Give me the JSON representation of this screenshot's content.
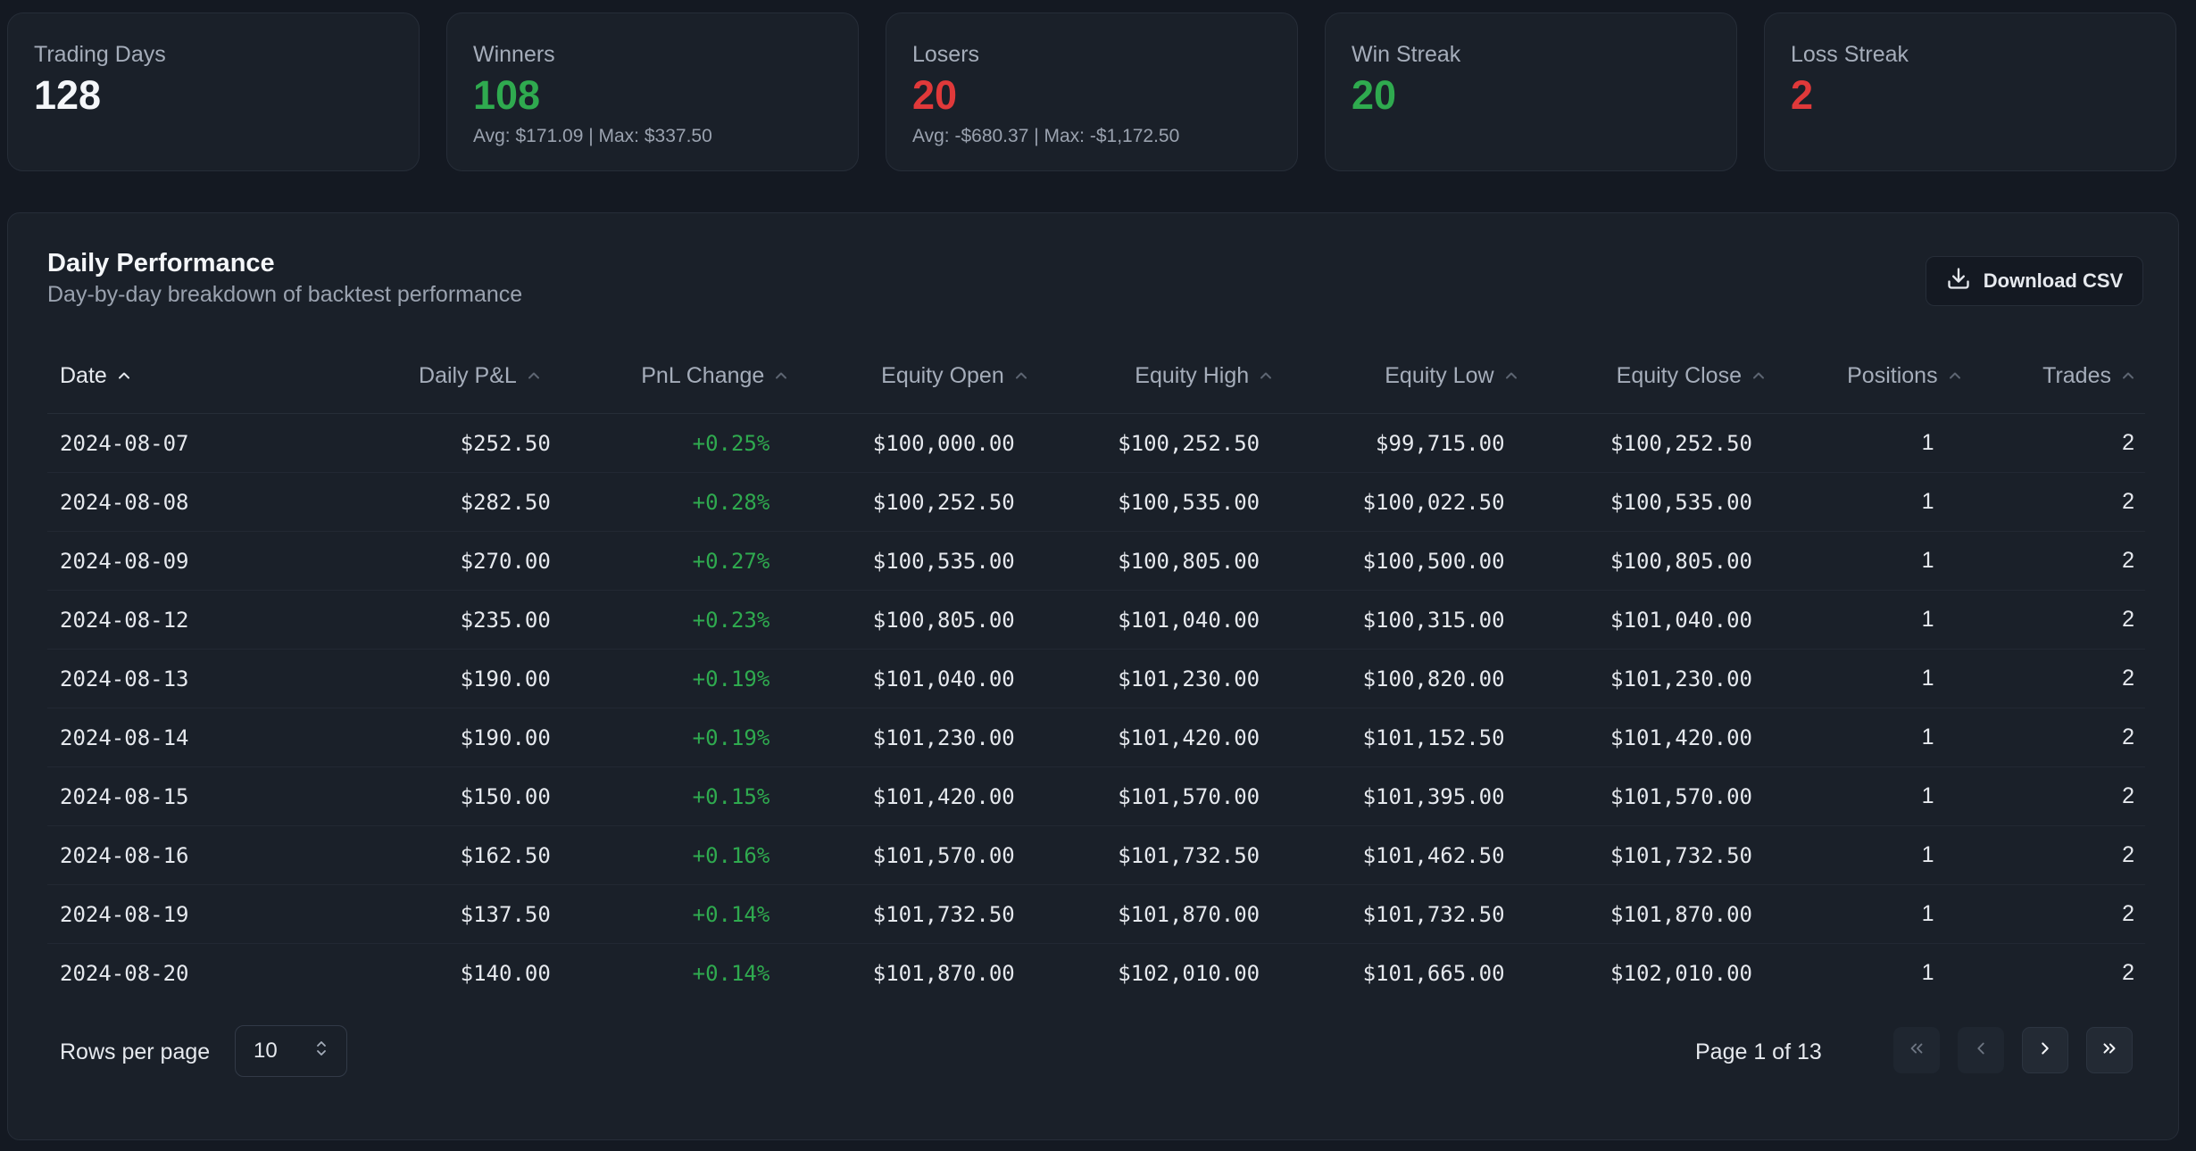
{
  "stats": {
    "trading_days": {
      "label": "Trading Days",
      "value": "128"
    },
    "winners": {
      "label": "Winners",
      "value": "108",
      "sub": "Avg: $171.09 | Max: $337.50"
    },
    "losers": {
      "label": "Losers",
      "value": "20",
      "sub": "Avg: -$680.37 | Max: -$1,172.50"
    },
    "win_streak": {
      "label": "Win Streak",
      "value": "20"
    },
    "loss_streak": {
      "label": "Loss Streak",
      "value": "2"
    }
  },
  "panel": {
    "title": "Daily Performance",
    "subtitle": "Day-by-day breakdown of backtest performance",
    "download_label": "Download CSV"
  },
  "table": {
    "headers": {
      "date": "Date",
      "daily_pnl": "Daily P&L",
      "pnl_change": "PnL Change",
      "equity_open": "Equity Open",
      "equity_high": "Equity High",
      "equity_low": "Equity Low",
      "equity_close": "Equity Close",
      "positions": "Positions",
      "trades": "Trades"
    },
    "rows": [
      {
        "date": "2024-08-07",
        "daily_pnl": "$252.50",
        "pnl_change": "+0.25%",
        "equity_open": "$100,000.00",
        "equity_high": "$100,252.50",
        "equity_low": "$99,715.00",
        "equity_close": "$100,252.50",
        "positions": "1",
        "trades": "2"
      },
      {
        "date": "2024-08-08",
        "daily_pnl": "$282.50",
        "pnl_change": "+0.28%",
        "equity_open": "$100,252.50",
        "equity_high": "$100,535.00",
        "equity_low": "$100,022.50",
        "equity_close": "$100,535.00",
        "positions": "1",
        "trades": "2"
      },
      {
        "date": "2024-08-09",
        "daily_pnl": "$270.00",
        "pnl_change": "+0.27%",
        "equity_open": "$100,535.00",
        "equity_high": "$100,805.00",
        "equity_low": "$100,500.00",
        "equity_close": "$100,805.00",
        "positions": "1",
        "trades": "2"
      },
      {
        "date": "2024-08-12",
        "daily_pnl": "$235.00",
        "pnl_change": "+0.23%",
        "equity_open": "$100,805.00",
        "equity_high": "$101,040.00",
        "equity_low": "$100,315.00",
        "equity_close": "$101,040.00",
        "positions": "1",
        "trades": "2"
      },
      {
        "date": "2024-08-13",
        "daily_pnl": "$190.00",
        "pnl_change": "+0.19%",
        "equity_open": "$101,040.00",
        "equity_high": "$101,230.00",
        "equity_low": "$100,820.00",
        "equity_close": "$101,230.00",
        "positions": "1",
        "trades": "2"
      },
      {
        "date": "2024-08-14",
        "daily_pnl": "$190.00",
        "pnl_change": "+0.19%",
        "equity_open": "$101,230.00",
        "equity_high": "$101,420.00",
        "equity_low": "$101,152.50",
        "equity_close": "$101,420.00",
        "positions": "1",
        "trades": "2"
      },
      {
        "date": "2024-08-15",
        "daily_pnl": "$150.00",
        "pnl_change": "+0.15%",
        "equity_open": "$101,420.00",
        "equity_high": "$101,570.00",
        "equity_low": "$101,395.00",
        "equity_close": "$101,570.00",
        "positions": "1",
        "trades": "2"
      },
      {
        "date": "2024-08-16",
        "daily_pnl": "$162.50",
        "pnl_change": "+0.16%",
        "equity_open": "$101,570.00",
        "equity_high": "$101,732.50",
        "equity_low": "$101,462.50",
        "equity_close": "$101,732.50",
        "positions": "1",
        "trades": "2"
      },
      {
        "date": "2024-08-19",
        "daily_pnl": "$137.50",
        "pnl_change": "+0.14%",
        "equity_open": "$101,732.50",
        "equity_high": "$101,870.00",
        "equity_low": "$101,732.50",
        "equity_close": "$101,870.00",
        "positions": "1",
        "trades": "2"
      },
      {
        "date": "2024-08-20",
        "daily_pnl": "$140.00",
        "pnl_change": "+0.14%",
        "equity_open": "$101,870.00",
        "equity_high": "$102,010.00",
        "equity_low": "$101,665.00",
        "equity_close": "$102,010.00",
        "positions": "1",
        "trades": "2"
      }
    ]
  },
  "footer": {
    "rows_per_page_label": "Rows per page",
    "rows_per_page_value": "10",
    "page_info": "Page 1 of 13"
  },
  "colors": {
    "positive": "#2faa4f",
    "negative": "#e0393a",
    "background": "#141922",
    "card": "#1a2029"
  },
  "icons": {
    "download": "download-icon",
    "sort": "chevron-up-icon",
    "select": "chevrons-up-down-icon",
    "first": "chevrons-left-icon",
    "prev": "chevron-left-icon",
    "next": "chevron-right-icon",
    "last": "chevrons-right-icon"
  }
}
